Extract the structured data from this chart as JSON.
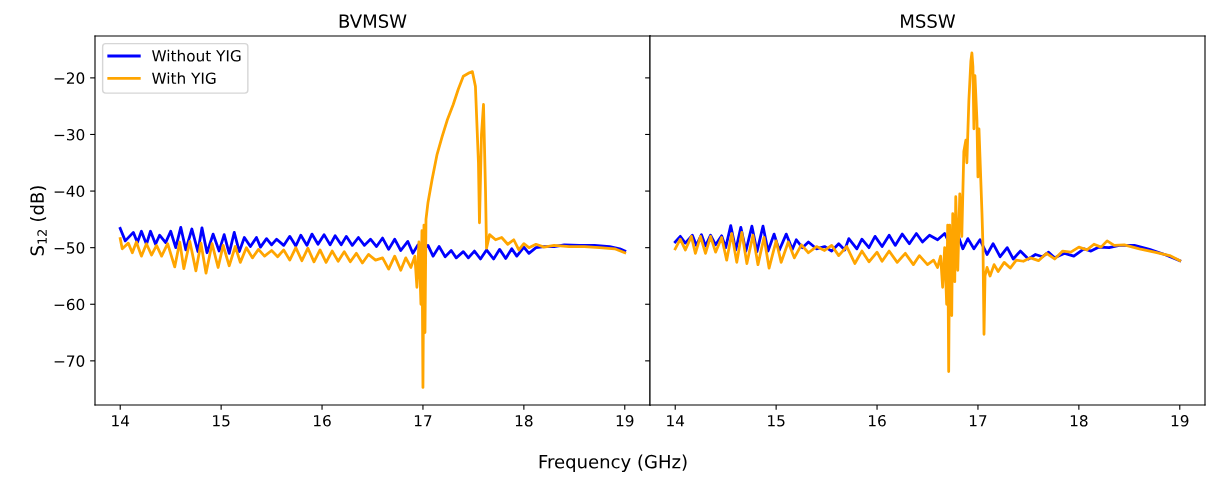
{
  "chart_data": [
    {
      "type": "line",
      "title": "BVMSW",
      "xlabel": "Frequency (GHz)",
      "ylabel": "S$_{12}$ (dB)",
      "xlim": [
        13.75,
        19.25
      ],
      "ylim": [
        -77.8,
        -12.6
      ],
      "xticks": [
        14,
        15,
        16,
        17,
        18,
        19
      ],
      "yticks": [
        -20,
        -30,
        -40,
        -50,
        -60,
        -70
      ],
      "legend": "top left",
      "series": [
        {
          "name": "Without YIG",
          "color": "#0000ff",
          "x": [
            14.0,
            14.05,
            14.13,
            14.17,
            14.21,
            14.26,
            14.3,
            14.35,
            14.39,
            14.45,
            14.5,
            14.55,
            14.6,
            14.65,
            14.71,
            14.77,
            14.81,
            14.86,
            14.92,
            14.98,
            15.03,
            15.08,
            15.13,
            15.18,
            15.23,
            15.29,
            15.35,
            15.39,
            15.45,
            15.5,
            15.55,
            15.62,
            15.68,
            15.74,
            15.79,
            15.85,
            15.9,
            15.96,
            16.02,
            16.08,
            16.13,
            16.19,
            16.24,
            16.3,
            16.36,
            16.42,
            16.48,
            16.54,
            16.6,
            16.66,
            16.72,
            16.78,
            16.85,
            16.9,
            16.95,
            17.0,
            17.05,
            17.1,
            17.16,
            17.22,
            17.28,
            17.33,
            17.4,
            17.45,
            17.51,
            17.57,
            17.63,
            17.7,
            17.76,
            17.82,
            17.88,
            17.93,
            18.0,
            18.05,
            18.12,
            18.2,
            18.3,
            18.4,
            18.55,
            18.7,
            18.85,
            18.95,
            19.0
          ],
          "values": [
            -46.6,
            -48.8,
            -47.3,
            -49.1,
            -47.1,
            -49.4,
            -47.1,
            -49.4,
            -47.8,
            -49.1,
            -47.1,
            -50.0,
            -46.4,
            -50.4,
            -46.7,
            -50.7,
            -46.5,
            -50.9,
            -47.6,
            -50.6,
            -47.7,
            -51.0,
            -47.3,
            -50.7,
            -48.2,
            -49.8,
            -48.2,
            -49.9,
            -48.4,
            -49.5,
            -48.5,
            -49.6,
            -48.0,
            -49.7,
            -47.8,
            -49.6,
            -47.6,
            -49.4,
            -47.7,
            -49.5,
            -47.9,
            -49.5,
            -48.0,
            -49.6,
            -48.2,
            -49.6,
            -48.5,
            -49.8,
            -48.3,
            -50.3,
            -48.5,
            -50.5,
            -48.9,
            -51.0,
            -49.5,
            -50.3,
            -49.6,
            -51.5,
            -49.8,
            -51.6,
            -50.5,
            -51.8,
            -50.7,
            -51.8,
            -50.6,
            -52.0,
            -50.4,
            -52.0,
            -50.3,
            -51.9,
            -50.2,
            -51.5,
            -49.9,
            -51.0,
            -50.0,
            -49.8,
            -49.8,
            -49.5,
            -49.6,
            -49.6,
            -49.8,
            -50.2,
            -50.6
          ]
        },
        {
          "name": "With YIG",
          "color": "#ffa500",
          "x": [
            14.0,
            14.02,
            14.08,
            14.12,
            14.16,
            14.21,
            14.26,
            14.31,
            14.36,
            14.41,
            14.47,
            14.54,
            14.59,
            14.63,
            14.69,
            14.75,
            14.8,
            14.85,
            14.91,
            14.97,
            15.02,
            15.08,
            15.14,
            15.19,
            15.25,
            15.31,
            15.37,
            15.43,
            15.5,
            15.56,
            15.62,
            15.68,
            15.74,
            15.8,
            15.86,
            15.92,
            15.98,
            16.04,
            16.1,
            16.16,
            16.22,
            16.28,
            16.34,
            16.4,
            16.46,
            16.53,
            16.6,
            16.66,
            16.72,
            16.78,
            16.83,
            16.88,
            16.92,
            16.94,
            16.96,
            16.98,
            16.99,
            17.0,
            17.01,
            17.02,
            17.03,
            17.05,
            17.09,
            17.14,
            17.19,
            17.24,
            17.3,
            17.35,
            17.4,
            17.46,
            17.49,
            17.52,
            17.55,
            17.56,
            17.58,
            17.6,
            17.62,
            17.63,
            17.66,
            17.72,
            17.78,
            17.84,
            17.9,
            17.95,
            18.0,
            18.05,
            18.12,
            18.2,
            18.3,
            18.45,
            18.6,
            18.75,
            18.9,
            19.0
          ],
          "values": [
            -48.4,
            -50.2,
            -49.2,
            -50.9,
            -49.0,
            -51.5,
            -49.3,
            -51.3,
            -49.6,
            -51.5,
            -49.3,
            -53.4,
            -49.0,
            -53.7,
            -48.9,
            -54.1,
            -49.2,
            -54.5,
            -49.3,
            -53.5,
            -49.6,
            -53.2,
            -49.8,
            -52.6,
            -50.0,
            -51.8,
            -50.3,
            -51.5,
            -50.5,
            -51.6,
            -50.4,
            -52.2,
            -50.0,
            -52.3,
            -50.1,
            -52.5,
            -50.4,
            -52.6,
            -50.6,
            -52.4,
            -50.7,
            -52.5,
            -51.0,
            -52.7,
            -51.2,
            -52.2,
            -51.8,
            -53.8,
            -51.5,
            -54.0,
            -51.8,
            -53.5,
            -51.5,
            -57,
            -49,
            -60,
            -47,
            -74.7,
            -46,
            -65,
            -45,
            -42,
            -38,
            -33.5,
            -30.4,
            -27.5,
            -24.7,
            -22.0,
            -19.7,
            -19.1,
            -18.9,
            -21.5,
            -35,
            -45.6,
            -30,
            -24.7,
            -40,
            -50.1,
            -47.7,
            -48.6,
            -48.2,
            -49.4,
            -48.6,
            -50.4,
            -49.3,
            -50.0,
            -49.4,
            -49.9,
            -49.6,
            -49.8,
            -49.8,
            -50.0,
            -50.2,
            -50.9
          ]
        }
      ]
    },
    {
      "type": "line",
      "title": "MSSW",
      "xlim": [
        13.75,
        19.25
      ],
      "ylim": [
        -77.8,
        -12.6
      ],
      "xticks": [
        14,
        15,
        16,
        17,
        18,
        19
      ],
      "yticks": [
        -20,
        -30,
        -40,
        -50,
        -60,
        -70
      ],
      "tick_labels": "x",
      "series": [
        {
          "color": "#0000ff",
          "x": [
            14.0,
            14.05,
            14.1,
            14.17,
            14.21,
            14.26,
            14.3,
            14.35,
            14.4,
            14.46,
            14.5,
            14.55,
            14.6,
            14.65,
            14.7,
            14.76,
            14.81,
            14.87,
            14.92,
            14.98,
            15.03,
            15.1,
            15.16,
            15.2,
            15.26,
            15.32,
            15.4,
            15.48,
            15.55,
            15.62,
            15.68,
            15.72,
            15.8,
            15.85,
            15.92,
            15.98,
            16.05,
            16.12,
            16.18,
            16.25,
            16.32,
            16.39,
            16.45,
            16.52,
            16.6,
            16.67,
            16.73,
            16.79,
            16.85,
            16.9,
            16.96,
            17.02,
            17.09,
            17.15,
            17.22,
            17.29,
            17.35,
            17.42,
            17.5,
            17.57,
            17.64,
            17.7,
            17.76,
            17.86,
            17.95,
            18.05,
            18.12,
            18.2,
            18.3,
            18.4,
            18.55,
            18.7,
            18.85,
            19.0
          ],
          "values": [
            -49.0,
            -48.0,
            -49.2,
            -47.8,
            -49.6,
            -47.7,
            -49.7,
            -47.8,
            -49.5,
            -47.9,
            -50.0,
            -46.1,
            -50.4,
            -46.4,
            -50.6,
            -46.2,
            -50.7,
            -46.2,
            -50.6,
            -47.6,
            -50.5,
            -47.6,
            -50.3,
            -48.6,
            -50.0,
            -49.0,
            -50.2,
            -49.8,
            -50.6,
            -49.3,
            -50.4,
            -48.4,
            -50.2,
            -48.5,
            -50.0,
            -48.0,
            -49.8,
            -47.8,
            -49.6,
            -47.6,
            -49.3,
            -47.5,
            -49.0,
            -47.8,
            -48.6,
            -47.5,
            -49.6,
            -47.2,
            -50.2,
            -48.4,
            -50.2,
            -48.6,
            -51.2,
            -49.3,
            -51.6,
            -50.0,
            -52.0,
            -50.6,
            -52.0,
            -51.2,
            -51.6,
            -50.8,
            -51.8,
            -51.0,
            -51.5,
            -50.2,
            -50.6,
            -49.9,
            -50.0,
            -49.6,
            -49.6,
            -50.3,
            -51.2,
            -52.3
          ]
        },
        {
          "color": "#ffa500",
          "x": [
            14.0,
            14.05,
            14.1,
            14.16,
            14.2,
            14.25,
            14.3,
            14.35,
            14.4,
            14.46,
            14.51,
            14.56,
            14.61,
            14.66,
            14.71,
            14.77,
            14.82,
            14.88,
            14.93,
            15.0,
            15.05,
            15.12,
            15.18,
            15.25,
            15.32,
            15.4,
            15.48,
            15.55,
            15.62,
            15.7,
            15.78,
            15.85,
            15.92,
            16.0,
            16.05,
            16.12,
            16.2,
            16.28,
            16.36,
            16.42,
            16.5,
            16.56,
            16.6,
            16.63,
            16.65,
            16.67,
            16.69,
            16.7,
            16.71,
            16.72,
            16.74,
            16.75,
            16.77,
            16.78,
            16.8,
            16.82,
            16.84,
            16.86,
            16.88,
            16.89,
            16.91,
            16.93,
            16.94,
            16.95,
            16.96,
            16.97,
            16.99,
            17.0,
            17.01,
            17.02,
            17.04,
            17.05,
            17.06,
            17.07,
            17.09,
            17.12,
            17.16,
            17.2,
            17.26,
            17.32,
            17.38,
            17.45,
            17.52,
            17.6,
            17.68,
            17.76,
            17.84,
            17.92,
            18.0,
            18.08,
            18.15,
            18.22,
            18.28,
            18.35,
            18.45,
            18.6,
            18.75,
            18.9,
            19.0
          ],
          "values": [
            -50.2,
            -48.5,
            -50.4,
            -48.0,
            -51.0,
            -48.0,
            -51.0,
            -48.0,
            -50.8,
            -48.2,
            -52.2,
            -47.5,
            -52.6,
            -47.3,
            -52.8,
            -47.8,
            -53.0,
            -48.2,
            -53.6,
            -48.8,
            -52.6,
            -49.0,
            -51.8,
            -49.5,
            -50.9,
            -49.8,
            -50.5,
            -49.6,
            -51.4,
            -49.8,
            -52.8,
            -50.6,
            -52.5,
            -50.8,
            -52.4,
            -50.6,
            -52.6,
            -51.0,
            -53.0,
            -51.4,
            -53.0,
            -52.2,
            -53.5,
            -51.5,
            -57,
            -50,
            -60,
            -46,
            -71.9,
            -46,
            -62,
            -44,
            -56,
            -41,
            -54,
            -40.5,
            -48,
            -33,
            -31,
            -35,
            -24,
            -17,
            -15.6,
            -18,
            -29,
            -19.6,
            -27.5,
            -37.5,
            -29,
            -34,
            -44,
            -50,
            -65.3,
            -55,
            -53.5,
            -55.0,
            -53.0,
            -54.2,
            -52.6,
            -53.6,
            -52.2,
            -52.4,
            -51.8,
            -52.3,
            -51.0,
            -52.0,
            -50.6,
            -50.8,
            -49.9,
            -50.4,
            -49.4,
            -49.9,
            -48.8,
            -49.6,
            -49.5,
            -50.2,
            -50.8,
            -51.4,
            -52.3
          ]
        }
      ]
    }
  ]
}
